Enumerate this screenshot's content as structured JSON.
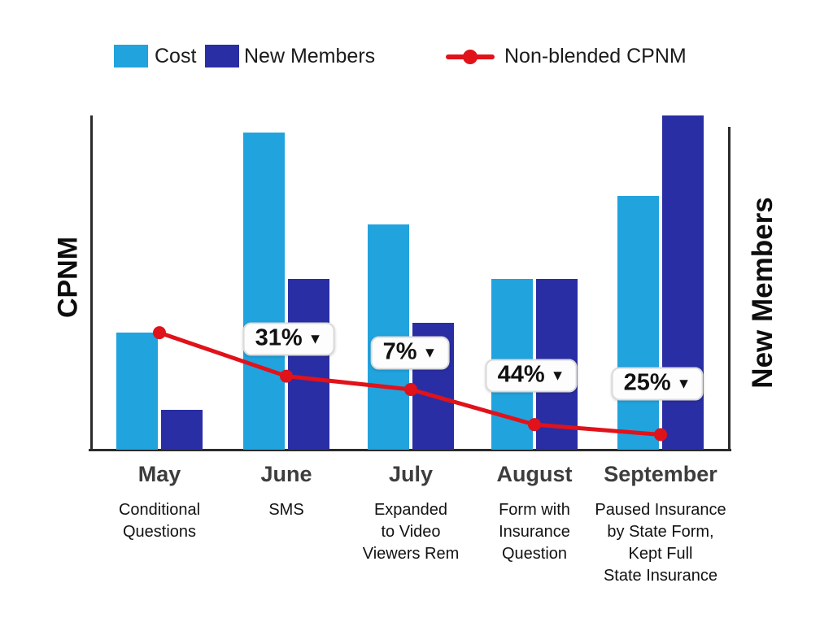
{
  "legend": [
    {
      "label": "Cost",
      "marker": "swatch",
      "color": "#21A3DE"
    },
    {
      "label": "New Members",
      "marker": "swatch",
      "color": "#2A2EA4"
    },
    {
      "label": "Non-blended CPNM",
      "marker": "line",
      "color": "#E0121A"
    }
  ],
  "axes": {
    "left_label": "CPNM",
    "right_label": "New Members"
  },
  "colors": {
    "cost": "#21A3DE",
    "new_members": "#2A2EA4",
    "cpnm_line": "#E0121A",
    "axis": "#2b2b2b"
  },
  "chart_data": {
    "type": "bar",
    "subtype": "grouped-bars-with-line-overlay",
    "categories": [
      "May",
      "June",
      "July",
      "August",
      "September"
    ],
    "category_notes": [
      [
        "Conditional",
        "Questions"
      ],
      [
        "SMS"
      ],
      [
        "Expanded",
        "to Video",
        "Viewers Rem"
      ],
      [
        "Form with",
        "Insurance",
        "Question"
      ],
      [
        "Paused Insurance",
        "by State Form,",
        "Kept Full",
        "State Insurance"
      ]
    ],
    "series": [
      {
        "name": "Cost",
        "type": "bar",
        "color": "#21A3DE",
        "values": [
          35,
          95,
          67.5,
          51,
          76
        ]
      },
      {
        "name": "New Members",
        "type": "bar",
        "color": "#2A2EA4",
        "values": [
          12,
          51,
          38,
          51,
          100
        ]
      },
      {
        "name": "Non-blended CPNM",
        "type": "line",
        "color": "#E0121A",
        "values": [
          35,
          22,
          18,
          7.5,
          4.5
        ]
      }
    ],
    "point_labels": [
      {
        "category": "June",
        "text": "31%",
        "arrow": "down"
      },
      {
        "category": "July",
        "text": "7%",
        "arrow": "down"
      },
      {
        "category": "August",
        "text": "44%",
        "arrow": "down"
      },
      {
        "category": "September",
        "text": "25%",
        "arrow": "down"
      }
    ],
    "ylabel": "CPNM",
    "ylabel_right": "New Members",
    "ylim": [
      0,
      100
    ],
    "grid": false,
    "legend_position": "top",
    "axis_tick_labels": "none"
  }
}
